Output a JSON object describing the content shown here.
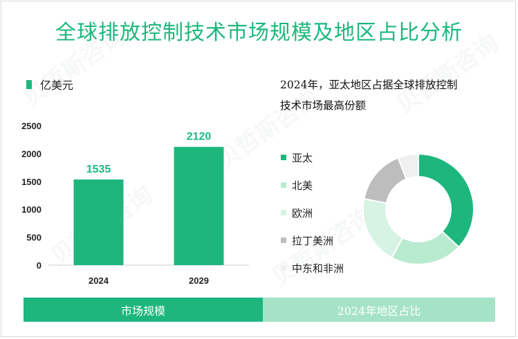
{
  "title": "全球排放控制技术市场规模及地区占比分析",
  "watermark": "贝哲斯咨询",
  "unit_legend": "亿美元",
  "colors": {
    "accent": "#1db77e",
    "light_accent": "#a6e3c6"
  },
  "chart_data": [
    {
      "type": "bar",
      "title": "",
      "ylabel": "亿美元",
      "categories": [
        "2024",
        "2029"
      ],
      "values": [
        1535,
        2120
      ],
      "yticks": [
        0,
        500,
        1000,
        1500,
        2000,
        2500
      ],
      "ylim": [
        0,
        2500
      ],
      "color": "#1db77e"
    },
    {
      "type": "pie",
      "title": "2024年，亚太地区占据全球排放控制技术市场最高份额",
      "labels": [
        "亚太",
        "北美",
        "欧洲",
        "拉丁美洲",
        "中东和非洲"
      ],
      "values": [
        37,
        21,
        20,
        16,
        6
      ],
      "colors": [
        "#1db77e",
        "#b9ebd0",
        "#d6f3e4",
        "#bdbdbd",
        "#f0f0f0"
      ]
    }
  ],
  "pie_title_lines": [
    "2024年，亚太地区占据全球排放控制",
    "技术市场最高份额"
  ],
  "footer": {
    "left": "市场规模",
    "right": "2024年地区占比"
  }
}
